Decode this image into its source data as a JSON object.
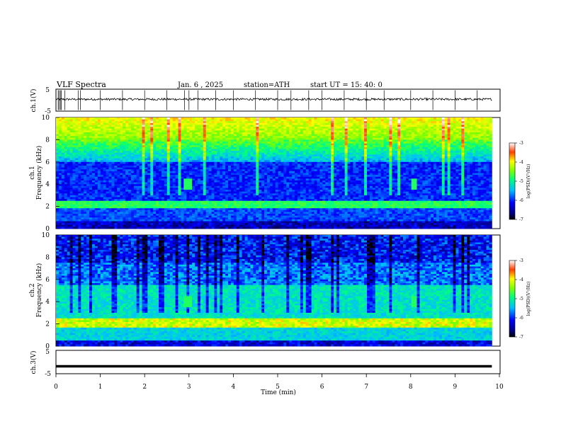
{
  "header": {
    "title": "VLF  Spectra",
    "date": "Jan. 6  , 2025",
    "station": "station=ATH",
    "start": "start  UT  =   15: 40: 0"
  },
  "chart_data": [
    {
      "type": "line",
      "name": "ch1-voltage",
      "ylabel": "ch.1(V)",
      "ylim": [
        -5,
        5
      ],
      "yticks": [
        "5",
        "-5"
      ],
      "baseline_v": 0.4,
      "noise_v": 0.5,
      "spikes": [
        0.05,
        0.07,
        0.1,
        0.12,
        0.2,
        0.5,
        0.55,
        1.0,
        1.5,
        2.0,
        2.5,
        2.9,
        3.0,
        3.2,
        3.6,
        4.0,
        4.5,
        5.0,
        5.3,
        5.7,
        6.0,
        6.5,
        7.0,
        7.4,
        8.0,
        8.5,
        9.0,
        9.5
      ]
    },
    {
      "type": "heatmap",
      "name": "ch1-spectrogram",
      "ylabel": "ch.1\nFrequency (kHz)",
      "ylim": [
        0,
        10
      ],
      "yticks": [
        "0",
        "2",
        "4",
        "6",
        "8",
        "10"
      ],
      "xlim_min": [
        0,
        9.83
      ],
      "colorbar": {
        "label": "log(PSD)(V²/Hz)",
        "range": [
          -7,
          -3
        ],
        "ticks": [
          "-3",
          "-4",
          "-5",
          "-6",
          "-7"
        ]
      },
      "features": {
        "event_times_min": [
          2.97,
          8.07
        ],
        "event_freq_khz": 4.0
      }
    },
    {
      "type": "heatmap",
      "name": "ch2-spectrogram",
      "ylabel": "ch.2\nFrequency (kHz)",
      "ylim": [
        0,
        10
      ],
      "yticks": [
        "0",
        "2",
        "4",
        "6",
        "8",
        "10"
      ],
      "xlim_min": [
        0,
        9.83
      ],
      "colorbar": {
        "label": "log(PSD)(V²/Hz)",
        "range": [
          -7,
          -3
        ],
        "ticks": [
          "-3",
          "-4",
          "-5",
          "-6",
          "-7"
        ]
      },
      "features": {
        "event_times_min": [
          2.97,
          8.07
        ],
        "event_freq_khz": 4.0
      }
    },
    {
      "type": "line",
      "name": "ch3-voltage",
      "ylabel": "ch.3(V)",
      "ylim": [
        -5,
        5
      ],
      "yticks": [
        "5",
        "-5"
      ],
      "baseline_v": -1.8
    }
  ],
  "xaxis": {
    "label": "Time  (min)",
    "range": [
      0,
      10
    ],
    "ticks": [
      "0",
      "1",
      "2",
      "3",
      "4",
      "5",
      "6",
      "7",
      "8",
      "9",
      "10"
    ]
  }
}
